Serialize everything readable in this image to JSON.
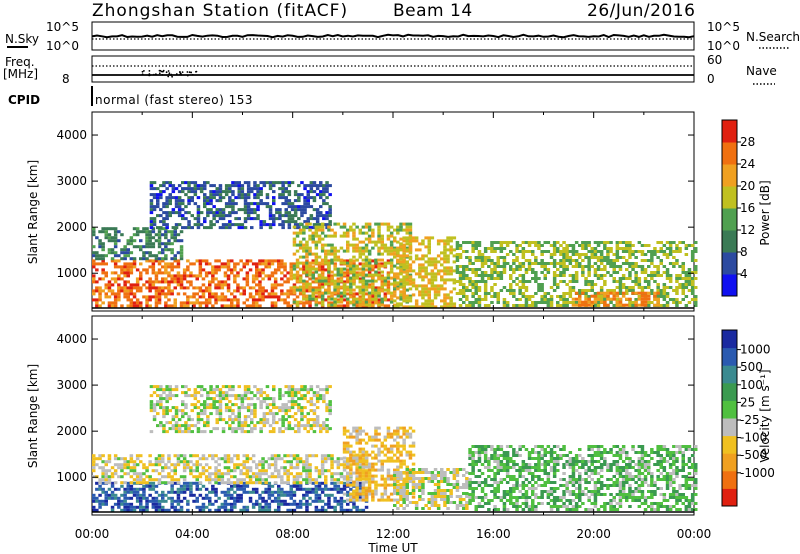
{
  "header": {
    "station": "Zhongshan Station (fitACF)",
    "beam": "Beam 14",
    "date": "26/Jun/2016"
  },
  "top_panel": {
    "left_label": "N.Sky",
    "right_label": "N.Search",
    "left_ticks": [
      "10^5",
      "10^0"
    ],
    "right_ticks": [
      "10^5",
      "10^0"
    ]
  },
  "freq_panel": {
    "left_label_line1": "Freq.",
    "left_label_line2": "[MHz]",
    "right_label": "Nave",
    "left_ticks": [
      "8"
    ],
    "right_ticks": [
      "60",
      "0"
    ]
  },
  "cpid": {
    "label": "CPID",
    "mode": "normal (fast stereo) 153"
  },
  "axes": {
    "ylabel": "Slant Range [km]",
    "xlabel": "Time UT",
    "y_ticks": [
      "1000",
      "2000",
      "3000",
      "4000"
    ],
    "x_ticks": [
      "00:00",
      "04:00",
      "08:00",
      "12:00",
      "16:00",
      "20:00",
      "00:00"
    ]
  },
  "power_scale": {
    "label": "Power [dB]",
    "ticks": [
      "4",
      "8",
      "12",
      "16",
      "20",
      "24",
      "28"
    ],
    "colors": [
      "#1010f0",
      "#2c4aa0",
      "#3a7a55",
      "#50a050",
      "#c0c020",
      "#f0a020",
      "#f07010",
      "#e02010"
    ]
  },
  "velocity_scale": {
    "label": "Velocity [m s⁻¹]",
    "ticks": [
      "1000",
      "500",
      "100",
      "25",
      "-25",
      "-100",
      "-500",
      "-1000"
    ],
    "colors": [
      "#1a2aa0",
      "#2a5ab0",
      "#3a8a90",
      "#3a9a50",
      "#50c040",
      "#bdbdbd",
      "#f0c020",
      "#f0a020",
      "#f07010",
      "#e02010"
    ]
  },
  "chart_data": [
    {
      "type": "heatmap",
      "title": "Power",
      "xlabel": "Time UT",
      "ylabel": "Slant Range [km]",
      "xlim": [
        0,
        24
      ],
      "ylim": [
        180,
        4500
      ],
      "colorbar": {
        "label": "Power [dB]",
        "range": [
          0,
          32
        ]
      },
      "regions": [
        {
          "t": [
            0.0,
            11.8
          ],
          "r": [
            300,
            1300
          ],
          "value": 26
        },
        {
          "t": [
            0.0,
            3.5
          ],
          "r": [
            1300,
            2000
          ],
          "value": 10
        },
        {
          "t": [
            2.3,
            9.5
          ],
          "r": [
            2000,
            3000
          ],
          "value": 7
        },
        {
          "t": [
            8.0,
            12.7
          ],
          "r": [
            300,
            2100
          ],
          "value": 18
        },
        {
          "t": [
            12.0,
            14.5
          ],
          "r": [
            300,
            1800
          ],
          "value": 20
        },
        {
          "t": [
            14.5,
            24.0
          ],
          "r": [
            300,
            1700
          ],
          "value": 16
        },
        {
          "t": [
            19.0,
            22.5
          ],
          "r": [
            300,
            600
          ],
          "value": 24
        }
      ]
    },
    {
      "type": "heatmap",
      "title": "Velocity",
      "xlabel": "Time UT",
      "ylabel": "Slant Range [km]",
      "xlim": [
        0,
        24
      ],
      "ylim": [
        180,
        4500
      ],
      "colorbar": {
        "label": "Velocity [m s⁻¹]",
        "range": [
          -1000,
          1000
        ]
      },
      "regions": [
        {
          "t": [
            0.0,
            11.0
          ],
          "r": [
            300,
            900
          ],
          "value": 700
        },
        {
          "t": [
            0.0,
            11.0
          ],
          "r": [
            900,
            1500
          ],
          "value": -150
        },
        {
          "t": [
            2.3,
            9.5
          ],
          "r": [
            2000,
            3000
          ],
          "value": -100
        },
        {
          "t": [
            10.0,
            12.8
          ],
          "r": [
            500,
            2100
          ],
          "value": -300
        },
        {
          "t": [
            12.0,
            15.0
          ],
          "r": [
            300,
            1200
          ],
          "value": -120
        },
        {
          "t": [
            15.0,
            24.0
          ],
          "r": [
            300,
            1700
          ],
          "value": 150
        }
      ]
    }
  ]
}
